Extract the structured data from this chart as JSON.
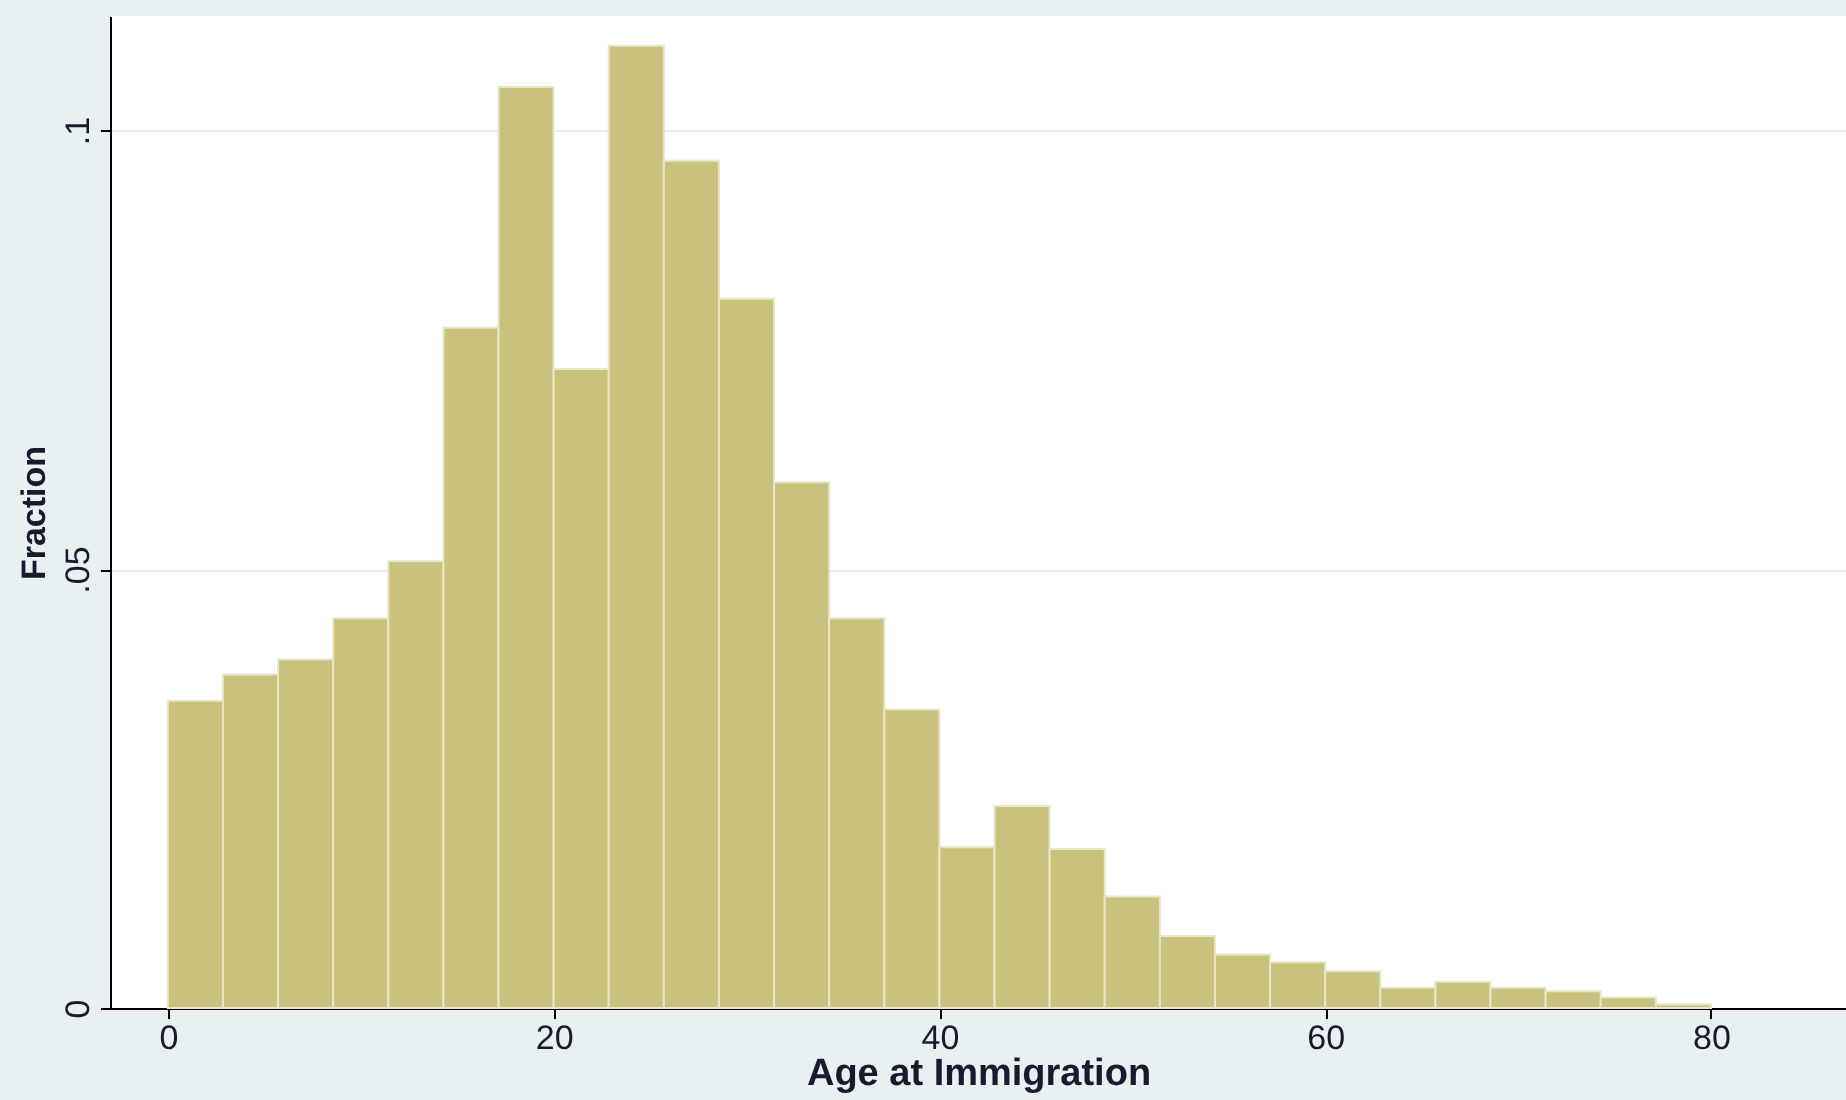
{
  "chart_data": {
    "type": "histogram",
    "xlabel": "Age at Immigration",
    "ylabel": "Fraction",
    "bins": [
      0,
      2.857,
      5.714,
      8.571,
      11.429,
      14.286,
      17.143,
      20,
      22.857,
      25.714,
      28.571,
      31.429,
      34.286,
      37.143,
      40,
      42.857,
      45.714,
      48.571,
      51.429,
      54.286,
      57.143,
      60,
      62.857,
      65.714,
      68.571,
      71.429,
      74.286,
      77.143,
      80
    ],
    "values": [
      0.035,
      0.038,
      0.0397,
      0.0444,
      0.0509,
      0.0775,
      0.1049,
      0.0728,
      0.1096,
      0.0965,
      0.0808,
      0.0599,
      0.0444,
      0.034,
      0.0183,
      0.023,
      0.0181,
      0.0127,
      0.0082,
      0.0061,
      0.0052,
      0.0042,
      0.0023,
      0.003,
      0.0023,
      0.0019,
      0.0012,
      0.0004
    ],
    "color": "#c9c27f",
    "xlim": [
      -3,
      87
    ],
    "xticks": [
      0,
      20,
      40,
      60,
      80
    ],
    "ylim": [
      0,
      0.113
    ],
    "yticks": [
      {
        "value": 0,
        "label": "0"
      },
      {
        "value": 0.05,
        "label": ".05"
      },
      {
        "value": 0.1,
        "label": ".1"
      }
    ],
    "grid": "y"
  }
}
